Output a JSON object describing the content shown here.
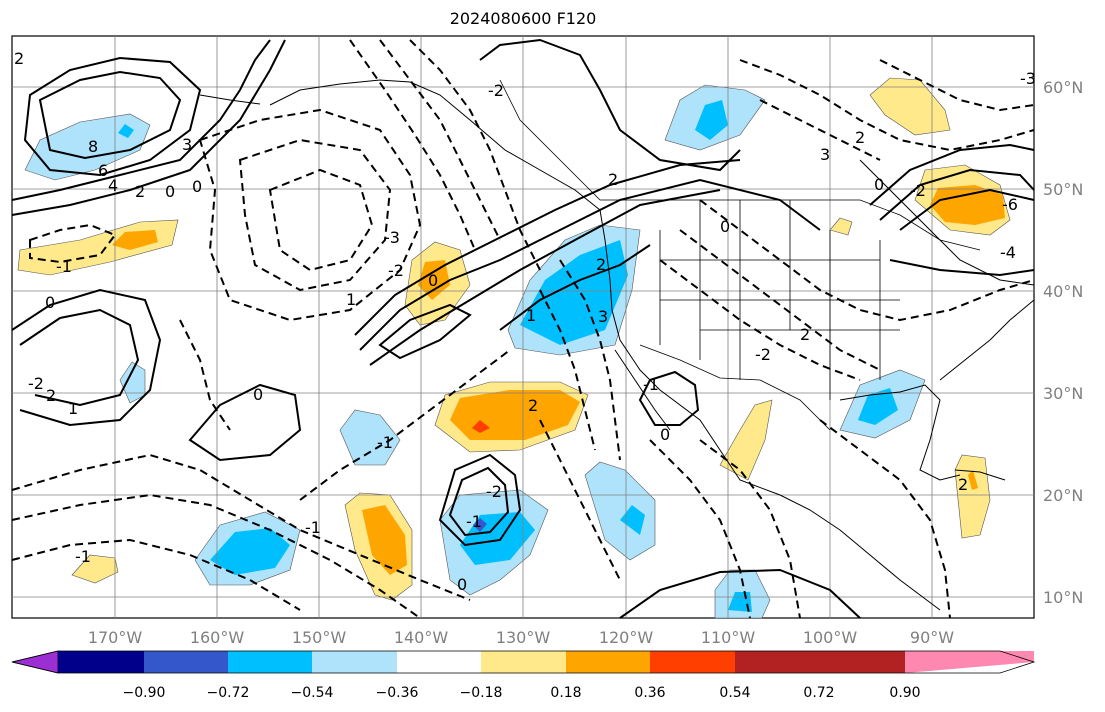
{
  "title": "2024080600 F120",
  "map": {
    "lat_labels": [
      "60°N",
      "50°N",
      "40°N",
      "30°N",
      "20°N",
      "10°N"
    ],
    "lon_labels": [
      "170°W",
      "160°W",
      "150°W",
      "140°W",
      "130°W",
      "120°W",
      "110°W",
      "100°W",
      "90°W"
    ],
    "gridline_color": "#808080",
    "contour_color": "#000000"
  },
  "colorbar": {
    "colors": [
      "#9b2fd1",
      "#00008b",
      "#3557cc",
      "#00bfff",
      "#aee3fb",
      "#ffffff",
      "#ffe98a",
      "#ffa500",
      "#ff3f00",
      "#b22222",
      "#ff88b0"
    ],
    "tick_labels": [
      "−0.90",
      "−0.72",
      "−0.54",
      "−0.36",
      "−0.18",
      "0.18",
      "0.36",
      "0.54",
      "0.72",
      "0.90"
    ]
  },
  "contour_labels": [
    "8",
    "6",
    "4",
    "2",
    "0",
    "0",
    "0",
    "-1",
    "0",
    "-3",
    "-2",
    "-1",
    "-2",
    "-1",
    "1",
    "2",
    "0",
    "1",
    "2",
    "3",
    "2",
    "1",
    "0",
    "-2",
    "-1",
    "2",
    "-1",
    "0",
    "-1",
    "2",
    "0",
    "2",
    "3",
    "-2",
    "-2",
    "0",
    "-2",
    "-6",
    "-4",
    "-3",
    "3",
    "2",
    "2"
  ]
}
